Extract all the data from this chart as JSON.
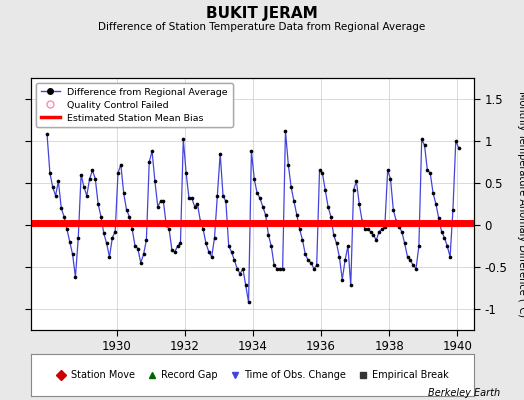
{
  "title": "BUKIT JERAM",
  "subtitle": "Difference of Station Temperature Data from Regional Average",
  "ylabel": "Monthly Temperature Anomaly Difference (°C)",
  "xlabel_bottom": "Berkeley Earth",
  "xlim": [
    1927.5,
    1940.5
  ],
  "ylim": [
    -1.25,
    1.75
  ],
  "yticks": [
    -1,
    -0.5,
    0,
    0.5,
    1,
    1.5
  ],
  "xticks": [
    1930,
    1932,
    1934,
    1936,
    1938,
    1940
  ],
  "bias_y": 0.02,
  "line_color": "#4444dd",
  "dot_color": "#000000",
  "bias_color": "#ff0000",
  "bg_color": "#e8e8e8",
  "plot_bg": "#ffffff",
  "data": [
    [
      1927.9583,
      1.08
    ],
    [
      1928.0417,
      0.62
    ],
    [
      1928.125,
      0.45
    ],
    [
      1928.2083,
      0.35
    ],
    [
      1928.2917,
      0.52
    ],
    [
      1928.375,
      0.2
    ],
    [
      1928.4583,
      0.1
    ],
    [
      1928.5417,
      -0.05
    ],
    [
      1928.625,
      -0.2
    ],
    [
      1928.7083,
      -0.35
    ],
    [
      1928.7917,
      -0.62
    ],
    [
      1928.875,
      -0.15
    ],
    [
      1928.9583,
      0.6
    ],
    [
      1929.0417,
      0.45
    ],
    [
      1929.125,
      0.35
    ],
    [
      1929.2083,
      0.55
    ],
    [
      1929.2917,
      0.65
    ],
    [
      1929.375,
      0.55
    ],
    [
      1929.4583,
      0.25
    ],
    [
      1929.5417,
      0.1
    ],
    [
      1929.625,
      -0.1
    ],
    [
      1929.7083,
      -0.22
    ],
    [
      1929.7917,
      -0.38
    ],
    [
      1929.875,
      -0.15
    ],
    [
      1929.9583,
      -0.08
    ],
    [
      1930.0417,
      0.62
    ],
    [
      1930.125,
      0.72
    ],
    [
      1930.2083,
      0.38
    ],
    [
      1930.2917,
      0.18
    ],
    [
      1930.375,
      0.1
    ],
    [
      1930.4583,
      -0.05
    ],
    [
      1930.5417,
      -0.25
    ],
    [
      1930.625,
      -0.28
    ],
    [
      1930.7083,
      -0.45
    ],
    [
      1930.7917,
      -0.35
    ],
    [
      1930.875,
      -0.18
    ],
    [
      1930.9583,
      0.75
    ],
    [
      1931.0417,
      0.88
    ],
    [
      1931.125,
      0.52
    ],
    [
      1931.2083,
      0.22
    ],
    [
      1931.2917,
      0.28
    ],
    [
      1931.375,
      0.28
    ],
    [
      1931.4583,
      0.0
    ],
    [
      1931.5417,
      -0.05
    ],
    [
      1931.625,
      -0.3
    ],
    [
      1931.7083,
      -0.32
    ],
    [
      1931.7917,
      -0.25
    ],
    [
      1931.875,
      -0.22
    ],
    [
      1931.9583,
      1.02
    ],
    [
      1932.0417,
      0.62
    ],
    [
      1932.125,
      0.32
    ],
    [
      1932.2083,
      0.32
    ],
    [
      1932.2917,
      0.22
    ],
    [
      1932.375,
      0.25
    ],
    [
      1932.4583,
      0.05
    ],
    [
      1932.5417,
      -0.05
    ],
    [
      1932.625,
      -0.22
    ],
    [
      1932.7083,
      -0.32
    ],
    [
      1932.7917,
      -0.38
    ],
    [
      1932.875,
      -0.15
    ],
    [
      1932.9583,
      0.35
    ],
    [
      1933.0417,
      0.85
    ],
    [
      1933.125,
      0.35
    ],
    [
      1933.2083,
      0.28
    ],
    [
      1933.2917,
      -0.25
    ],
    [
      1933.375,
      -0.32
    ],
    [
      1933.4583,
      -0.42
    ],
    [
      1933.5417,
      -0.52
    ],
    [
      1933.625,
      -0.58
    ],
    [
      1933.7083,
      -0.52
    ],
    [
      1933.7917,
      -0.72
    ],
    [
      1933.875,
      -0.92
    ],
    [
      1933.9583,
      0.88
    ],
    [
      1934.0417,
      0.55
    ],
    [
      1934.125,
      0.38
    ],
    [
      1934.2083,
      0.32
    ],
    [
      1934.2917,
      0.22
    ],
    [
      1934.375,
      0.12
    ],
    [
      1934.4583,
      -0.12
    ],
    [
      1934.5417,
      -0.25
    ],
    [
      1934.625,
      -0.48
    ],
    [
      1934.7083,
      -0.52
    ],
    [
      1934.7917,
      -0.52
    ],
    [
      1934.875,
      -0.52
    ],
    [
      1934.9583,
      1.12
    ],
    [
      1935.0417,
      0.72
    ],
    [
      1935.125,
      0.45
    ],
    [
      1935.2083,
      0.28
    ],
    [
      1935.2917,
      0.12
    ],
    [
      1935.375,
      -0.05
    ],
    [
      1935.4583,
      -0.18
    ],
    [
      1935.5417,
      -0.35
    ],
    [
      1935.625,
      -0.42
    ],
    [
      1935.7083,
      -0.45
    ],
    [
      1935.7917,
      -0.52
    ],
    [
      1935.875,
      -0.48
    ],
    [
      1935.9583,
      0.65
    ],
    [
      1936.0417,
      0.62
    ],
    [
      1936.125,
      0.42
    ],
    [
      1936.2083,
      0.22
    ],
    [
      1936.2917,
      0.1
    ],
    [
      1936.375,
      -0.12
    ],
    [
      1936.4583,
      -0.22
    ],
    [
      1936.5417,
      -0.38
    ],
    [
      1936.625,
      -0.65
    ],
    [
      1936.7083,
      -0.42
    ],
    [
      1936.7917,
      -0.25
    ],
    [
      1936.875,
      -0.72
    ],
    [
      1936.9583,
      0.42
    ],
    [
      1937.0417,
      0.52
    ],
    [
      1937.125,
      0.25
    ],
    [
      1937.2083,
      0.05
    ],
    [
      1937.2917,
      -0.05
    ],
    [
      1937.375,
      -0.05
    ],
    [
      1937.4583,
      -0.08
    ],
    [
      1937.5417,
      -0.12
    ],
    [
      1937.625,
      -0.18
    ],
    [
      1937.7083,
      -0.08
    ],
    [
      1937.7917,
      -0.05
    ],
    [
      1937.875,
      -0.02
    ],
    [
      1937.9583,
      0.65
    ],
    [
      1938.0417,
      0.55
    ],
    [
      1938.125,
      0.18
    ],
    [
      1938.2083,
      0.05
    ],
    [
      1938.2917,
      -0.02
    ],
    [
      1938.375,
      -0.08
    ],
    [
      1938.4583,
      -0.22
    ],
    [
      1938.5417,
      -0.38
    ],
    [
      1938.625,
      -0.42
    ],
    [
      1938.7083,
      -0.48
    ],
    [
      1938.7917,
      -0.52
    ],
    [
      1938.875,
      -0.25
    ],
    [
      1938.9583,
      1.02
    ],
    [
      1939.0417,
      0.95
    ],
    [
      1939.125,
      0.65
    ],
    [
      1939.2083,
      0.62
    ],
    [
      1939.2917,
      0.38
    ],
    [
      1939.375,
      0.25
    ],
    [
      1939.4583,
      0.08
    ],
    [
      1939.5417,
      -0.08
    ],
    [
      1939.625,
      -0.15
    ],
    [
      1939.7083,
      -0.25
    ],
    [
      1939.7917,
      -0.38
    ],
    [
      1939.875,
      0.18
    ],
    [
      1939.9583,
      1.0
    ],
    [
      1940.0417,
      0.92
    ]
  ]
}
